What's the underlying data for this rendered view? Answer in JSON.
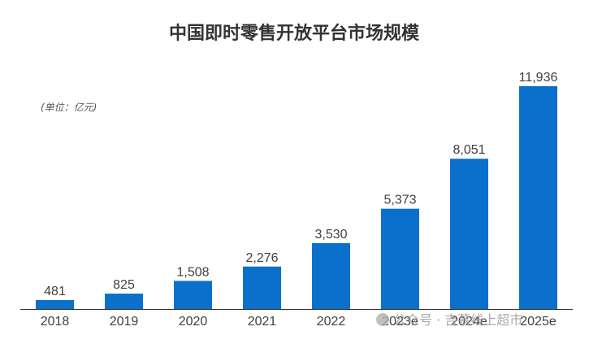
{
  "chart_data": {
    "type": "bar",
    "title": "中国即时零售开放平台市场规模",
    "unit_label": "(单位：亿元)",
    "categories": [
      "2018",
      "2019",
      "2020",
      "2021",
      "2022",
      "2023e",
      "2024e",
      "2025e"
    ],
    "values": [
      481,
      825,
      1508,
      2276,
      3530,
      5373,
      8051,
      11936
    ],
    "data_labels": [
      "481",
      "825",
      "1,508",
      "2,276",
      "3,530",
      "5,373",
      "8,051",
      "11,936"
    ],
    "ylim": [
      0,
      11936
    ],
    "grid": false,
    "legend": "none",
    "colors": {
      "bar": "#0A70CC",
      "axis": "#333333"
    }
  },
  "watermark": "公众号 · 吉慕线上超市"
}
